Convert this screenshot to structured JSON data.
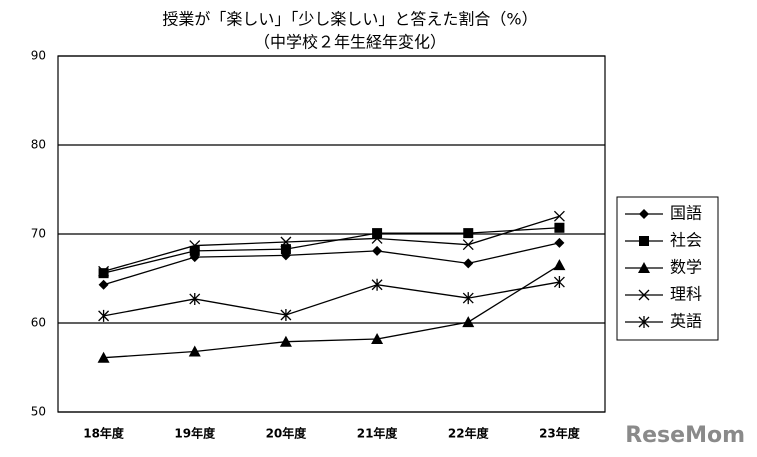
{
  "chart_data": {
    "type": "line",
    "title": "授業が「楽しい」「少し楽しい」と答えた割合（%）",
    "subtitle": "（中学校２年生経年変化）",
    "categories": [
      "18年度",
      "19年度",
      "20年度",
      "21年度",
      "22年度",
      "23年度"
    ],
    "series": [
      {
        "name": "国語",
        "color": "#000000",
        "marker": "diamond",
        "values": [
          64.3,
          67.4,
          67.6,
          68.1,
          66.7,
          69.0
        ]
      },
      {
        "name": "社会",
        "color": "#000000",
        "marker": "square",
        "values": [
          65.6,
          68.1,
          68.3,
          70.1,
          70.1,
          70.7
        ]
      },
      {
        "name": "数学",
        "color": "#000000",
        "marker": "triangle",
        "values": [
          56.1,
          56.8,
          57.9,
          58.2,
          60.1,
          66.5
        ]
      },
      {
        "name": "理科",
        "color": "#000000",
        "marker": "x",
        "values": [
          65.8,
          68.7,
          69.1,
          69.5,
          68.8,
          72.0
        ]
      },
      {
        "name": "英語",
        "color": "#000000",
        "marker": "star",
        "values": [
          60.8,
          62.7,
          60.9,
          64.3,
          62.8,
          64.6
        ]
      }
    ],
    "ylim": [
      50,
      90
    ],
    "yticks": [
      50,
      60,
      70,
      80,
      90
    ],
    "grid": true,
    "legend": "right",
    "watermark": "ReseMom"
  }
}
